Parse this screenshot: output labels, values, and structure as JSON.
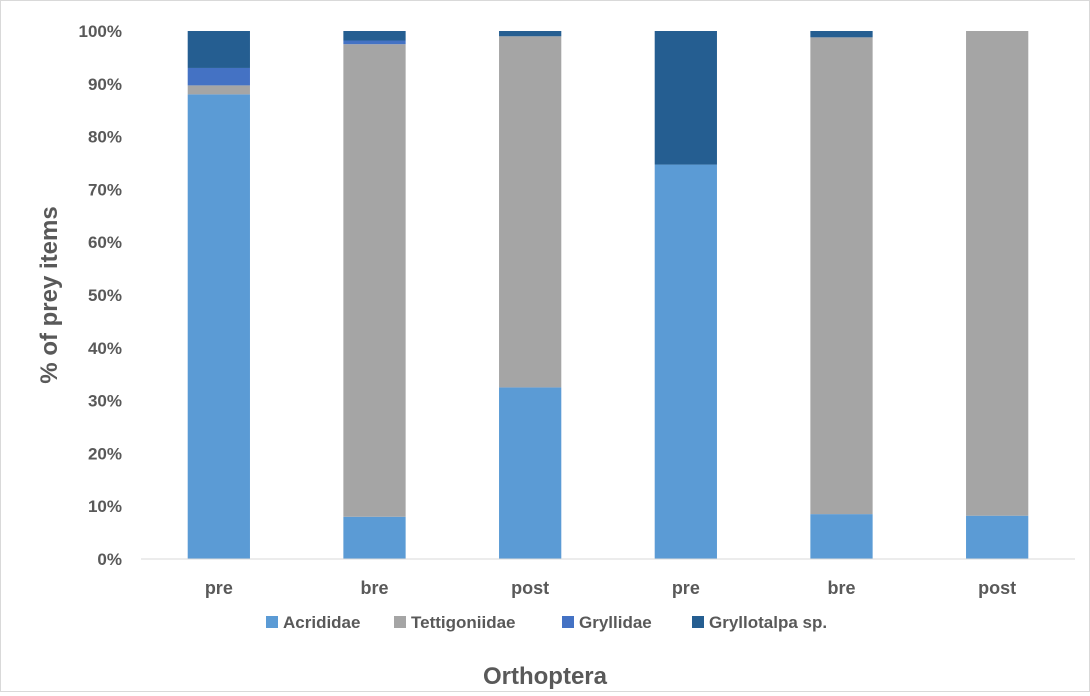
{
  "chart_data": {
    "type": "bar",
    "stacked": true,
    "percent": true,
    "categories": [
      "pre",
      "bre",
      "post",
      "pre",
      "bre",
      "post"
    ],
    "series": [
      {
        "name": "Acrididae",
        "color": "#5b9bd5",
        "values": [
          88,
          8,
          32.5,
          74.7,
          8.5,
          8.2
        ]
      },
      {
        "name": "Tettigoniidae",
        "color": "#a5a5a5",
        "values": [
          1.7,
          89.5,
          66.5,
          0,
          90.3,
          91.8
        ]
      },
      {
        "name": "Gryllidae",
        "color": "#4472c4",
        "values": [
          3.3,
          0.7,
          0,
          0,
          0,
          0
        ]
      },
      {
        "name": "Gryllotalpa sp.",
        "color": "#255e91",
        "values": [
          7,
          1.8,
          1,
          25.3,
          1.2,
          0
        ]
      }
    ],
    "ylabel": "% of prey items",
    "xlabel": "Orthoptera",
    "ylim": [
      0,
      100
    ],
    "yticks": [
      "0%",
      "10%",
      "20%",
      "30%",
      "40%",
      "50%",
      "60%",
      "70%",
      "80%",
      "90%",
      "100%"
    ],
    "grid": false,
    "legend_position": "bottom"
  }
}
